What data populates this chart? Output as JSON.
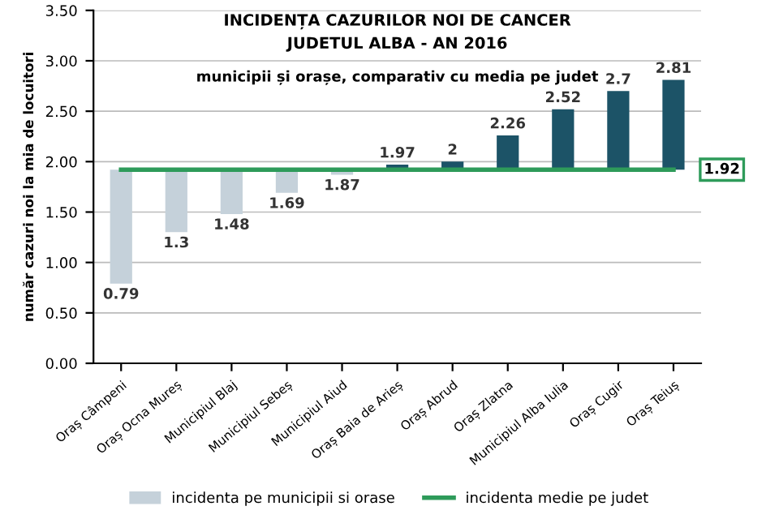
{
  "chart_data": {
    "type": "bar",
    "title": "INCIDENȚA CAZURILOR NOI DE CANCER\nJUDETUL ALBA - AN 2016",
    "subtitle": "municipii și orașe, comparativ cu media pe judet",
    "ylabel": "număr cazuri noi la mia de locuitori",
    "categories": [
      "Oraș Câmpeni",
      "Oraș Ocna Mureș",
      "Municipiul Blaj",
      "Municipiul Sebeș",
      "Municipiul Aiud",
      "Oraș Baia de Arieș",
      "Oraș Abrud",
      "Oraș Zlatna",
      "Municipiul Alba Iulia",
      "Oraș Cugir",
      "Oraș Teiuș"
    ],
    "series": [
      {
        "name": "incidenta pe municipii si orase",
        "base": [
          1.92,
          1.92,
          1.92,
          1.92,
          1.92,
          1.92,
          1.92,
          1.92,
          1.92,
          1.92,
          1.92
        ],
        "values": [
          -1.13,
          -0.62,
          -0.44,
          -0.23,
          -0.05,
          0.05,
          0.08,
          0.34,
          0.6,
          0.78,
          0.89
        ],
        "value_labels": [
          "0.79",
          "1.3",
          "1.48",
          "1.69",
          "1.87",
          "1.97",
          "2",
          "2.26",
          "2.52",
          "2.7",
          "2.81"
        ],
        "color": "#c5d1da",
        "colors": [
          "#c5d1da",
          "#c5d1da",
          "#c5d1da",
          "#c5d1da",
          "#c5d1da",
          "#1c5367",
          "#1c5367",
          "#1c5367",
          "#1c5367",
          "#1c5367",
          "#1c5367"
        ]
      },
      {
        "name": "incidenta medie pe judet",
        "type": "line",
        "values": [
          1.92,
          1.92,
          1.92,
          1.92,
          1.92,
          1.92,
          1.92,
          1.92,
          1.92,
          1.92,
          1.92
        ],
        "color": "#2e9b5a"
      }
    ],
    "annotations": [
      {
        "text": "1.92",
        "x": "Oraș Teiuș",
        "y": 1.92
      }
    ],
    "ylim": [
      0,
      3.5
    ],
    "yticks": [
      {
        "value": 0,
        "label": "0.00"
      },
      {
        "value": 0.5,
        "label": "0.50"
      },
      {
        "value": 1,
        "label": "1.00"
      },
      {
        "value": 1.5,
        "label": "1.50"
      },
      {
        "value": 2,
        "label": "2.00"
      },
      {
        "value": 2.5,
        "label": "2.50"
      },
      {
        "value": 3,
        "label": "3.00"
      },
      {
        "value": 3.5,
        "label": "3.50"
      }
    ],
    "grid": "y",
    "legend": "bottom"
  }
}
